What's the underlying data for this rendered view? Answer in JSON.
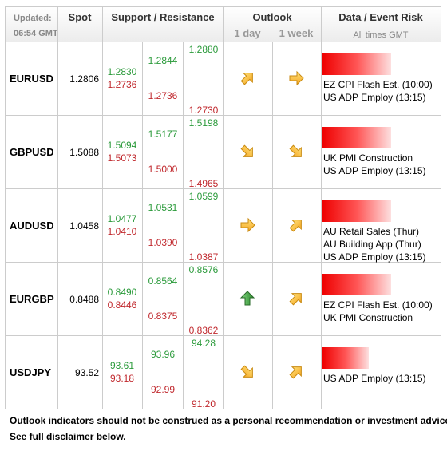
{
  "header": {
    "updated": "Updated:",
    "time": "06:54 GMT",
    "spot": "Spot",
    "support_resistance": "Support / Resistance",
    "outlook": "Outlook",
    "day": "1 day",
    "week": "1 week",
    "data_event_risk": "Data / Event Risk",
    "times": "All times GMT"
  },
  "rows": [
    {
      "pair": "EURUSD",
      "spot": "1.2806",
      "resistance": [
        "1.2830",
        "1.2844",
        "1.2880"
      ],
      "support": [
        "1.2736",
        "1.2736",
        "1.2730"
      ],
      "events": [
        "EZ CPI Flash Est. (10:00)",
        "US ADP Employ (13:15)"
      ]
    },
    {
      "pair": "GBPUSD",
      "spot": "1.5088",
      "resistance": [
        "1.5094",
        "1.5177",
        "1.5198"
      ],
      "support": [
        "1.5073",
        "1.5000",
        "1.4965"
      ],
      "events": [
        "UK PMI Construction",
        "US ADP Employ (13:15)"
      ]
    },
    {
      "pair": "AUDUSD",
      "spot": "1.0458",
      "resistance": [
        "1.0477",
        "1.0531",
        "1.0599"
      ],
      "support": [
        "1.0410",
        "1.0390",
        "1.0387"
      ],
      "events": [
        "AU Retail Sales (Thur)",
        "AU Building App (Thur)",
        "US ADP Employ (13:15)"
      ]
    },
    {
      "pair": "EURGBP",
      "spot": "0.8488",
      "resistance": [
        "0.8490",
        "0.8564",
        "0.8576"
      ],
      "support": [
        "0.8446",
        "0.8375",
        "0.8362"
      ],
      "events": [
        "EZ CPI Flash Est. (10:00)",
        "UK PMI Construction"
      ]
    },
    {
      "pair": "USDJPY",
      "spot": "93.52",
      "resistance": [
        "93.61",
        "93.96",
        "94.28"
      ],
      "support": [
        "93.18",
        "92.99",
        "91.20"
      ],
      "events": [
        "US ADP Employ (13:15)"
      ]
    }
  ],
  "footer": [
    "Outlook indicators should not be construed as a personal recommendation or investment advice.",
    "See full disclaimer below."
  ]
}
